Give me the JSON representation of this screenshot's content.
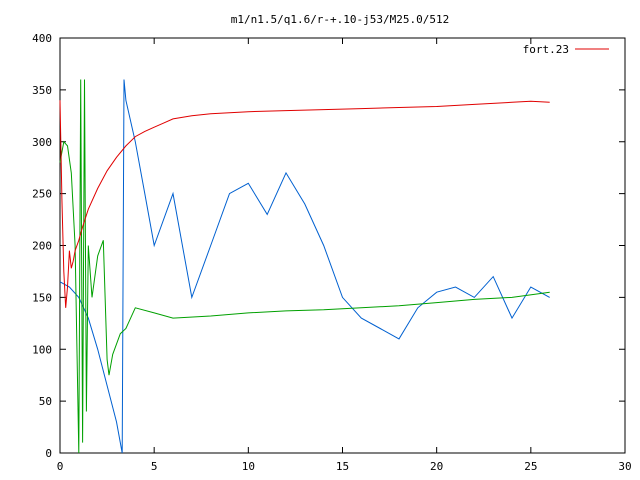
{
  "chart_data": {
    "type": "line",
    "title": "m1/n1.5/q1.6/r-+.10-j53/M25.0/512",
    "xlabel": "",
    "ylabel": "",
    "xlim": [
      0,
      30
    ],
    "ylim": [
      0,
      400
    ],
    "x_ticks": [
      "0",
      "5",
      "10",
      "15",
      "20",
      "25",
      "30"
    ],
    "y_ticks": [
      "0",
      "50",
      "100",
      "150",
      "200",
      "250",
      "300",
      "350",
      "400"
    ],
    "grid": false,
    "legend": {
      "placement": "top-right",
      "entries": [
        "fort.23"
      ]
    },
    "series": [
      {
        "name": "fort.23",
        "color": "#e00000",
        "x": [
          0,
          0.1,
          0.2,
          0.3,
          0.4,
          0.5,
          0.6,
          0.7,
          0.8,
          1.0,
          1.2,
          1.5,
          2.0,
          2.5,
          3.0,
          3.5,
          4.0,
          4.5,
          5.0,
          5.5,
          6.0,
          7.0,
          8.0,
          10.0,
          12.0,
          14.0,
          16.0,
          18.0,
          20.0,
          22.0,
          24.0,
          25.0,
          26.0
        ],
        "values": [
          340,
          245,
          175,
          140,
          160,
          195,
          178,
          185,
          195,
          205,
          218,
          235,
          255,
          272,
          285,
          296,
          305,
          310,
          314,
          318,
          322,
          325,
          327,
          329,
          330,
          331,
          332,
          333,
          334,
          336,
          338,
          339,
          338
        ]
      },
      {
        "name": "",
        "color": "#00a000",
        "x": [
          0,
          0.2,
          0.4,
          0.6,
          0.8,
          1.0,
          1.1,
          1.2,
          1.3,
          1.4,
          1.5,
          1.7,
          2.0,
          2.3,
          2.5,
          2.6,
          2.8,
          3.0,
          3.2,
          3.5,
          4.0,
          5.0,
          6.0,
          8.0,
          10.0,
          12.0,
          14.0,
          16.0,
          18.0,
          20.0,
          22.0,
          24.0,
          26.0
        ],
        "values": [
          280,
          300,
          296,
          270,
          200,
          0,
          360,
          10,
          360,
          40,
          200,
          150,
          190,
          205,
          90,
          75,
          95,
          105,
          115,
          120,
          140,
          135,
          130,
          132,
          135,
          137,
          138,
          140,
          142,
          145,
          148,
          150,
          155
        ]
      },
      {
        "name": "",
        "color": "#0060d0",
        "x": [
          0,
          0.5,
          1.0,
          1.5,
          2.0,
          2.5,
          3.0,
          3.3,
          3.4,
          3.5,
          4.0,
          4.5,
          5.0,
          6.0,
          7.0,
          8.0,
          9.0,
          10.0,
          11.0,
          12.0,
          13.0,
          14.0,
          15.0,
          16.0,
          17.0,
          18.0,
          19.0,
          20.0,
          21.0,
          22.0,
          23.0,
          24.0,
          25.0,
          26.0
        ],
        "values": [
          165,
          160,
          150,
          130,
          100,
          65,
          30,
          0,
          360,
          340,
          300,
          250,
          200,
          250,
          150,
          200,
          250,
          260,
          230,
          270,
          240,
          200,
          150,
          130,
          120,
          110,
          140,
          155,
          160,
          150,
          170,
          130,
          160,
          150
        ]
      }
    ]
  }
}
